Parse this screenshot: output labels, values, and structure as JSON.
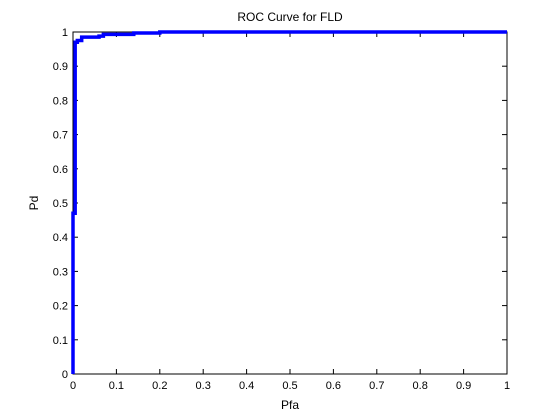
{
  "chart_data": {
    "type": "line",
    "title": "ROC Curve for FLD",
    "xlabel": "Pfa",
    "ylabel": "Pd",
    "xlim": [
      0,
      1
    ],
    "ylim": [
      0,
      1
    ],
    "x_ticks": [
      0,
      0.1,
      0.2,
      0.3,
      0.4,
      0.5,
      0.6,
      0.7,
      0.8,
      0.9,
      1
    ],
    "y_ticks": [
      0,
      0.1,
      0.2,
      0.3,
      0.4,
      0.5,
      0.6,
      0.7,
      0.8,
      0.9,
      1
    ],
    "x_tick_labels": [
      "0",
      "0.1",
      "0.2",
      "0.3",
      "0.4",
      "0.5",
      "0.6",
      "0.7",
      "0.8",
      "0.9",
      "1"
    ],
    "y_tick_labels": [
      "0",
      "0.1",
      "0.2",
      "0.3",
      "0.4",
      "0.5",
      "0.6",
      "0.7",
      "0.8",
      "0.9",
      "1"
    ],
    "grid": false,
    "series": [
      {
        "color": "#0000ff",
        "x": [
          0,
          0,
          0.005,
          0.005,
          0.01,
          0.01,
          0.02,
          0.02,
          0.06,
          0.06,
          0.07,
          0.07,
          0.14,
          0.14,
          0.2,
          0.2,
          1
        ],
        "y": [
          0,
          0.47,
          0.47,
          0.97,
          0.97,
          0.975,
          0.975,
          0.985,
          0.985,
          0.988,
          0.988,
          0.993,
          0.993,
          0.997,
          0.997,
          1,
          1
        ]
      }
    ]
  }
}
